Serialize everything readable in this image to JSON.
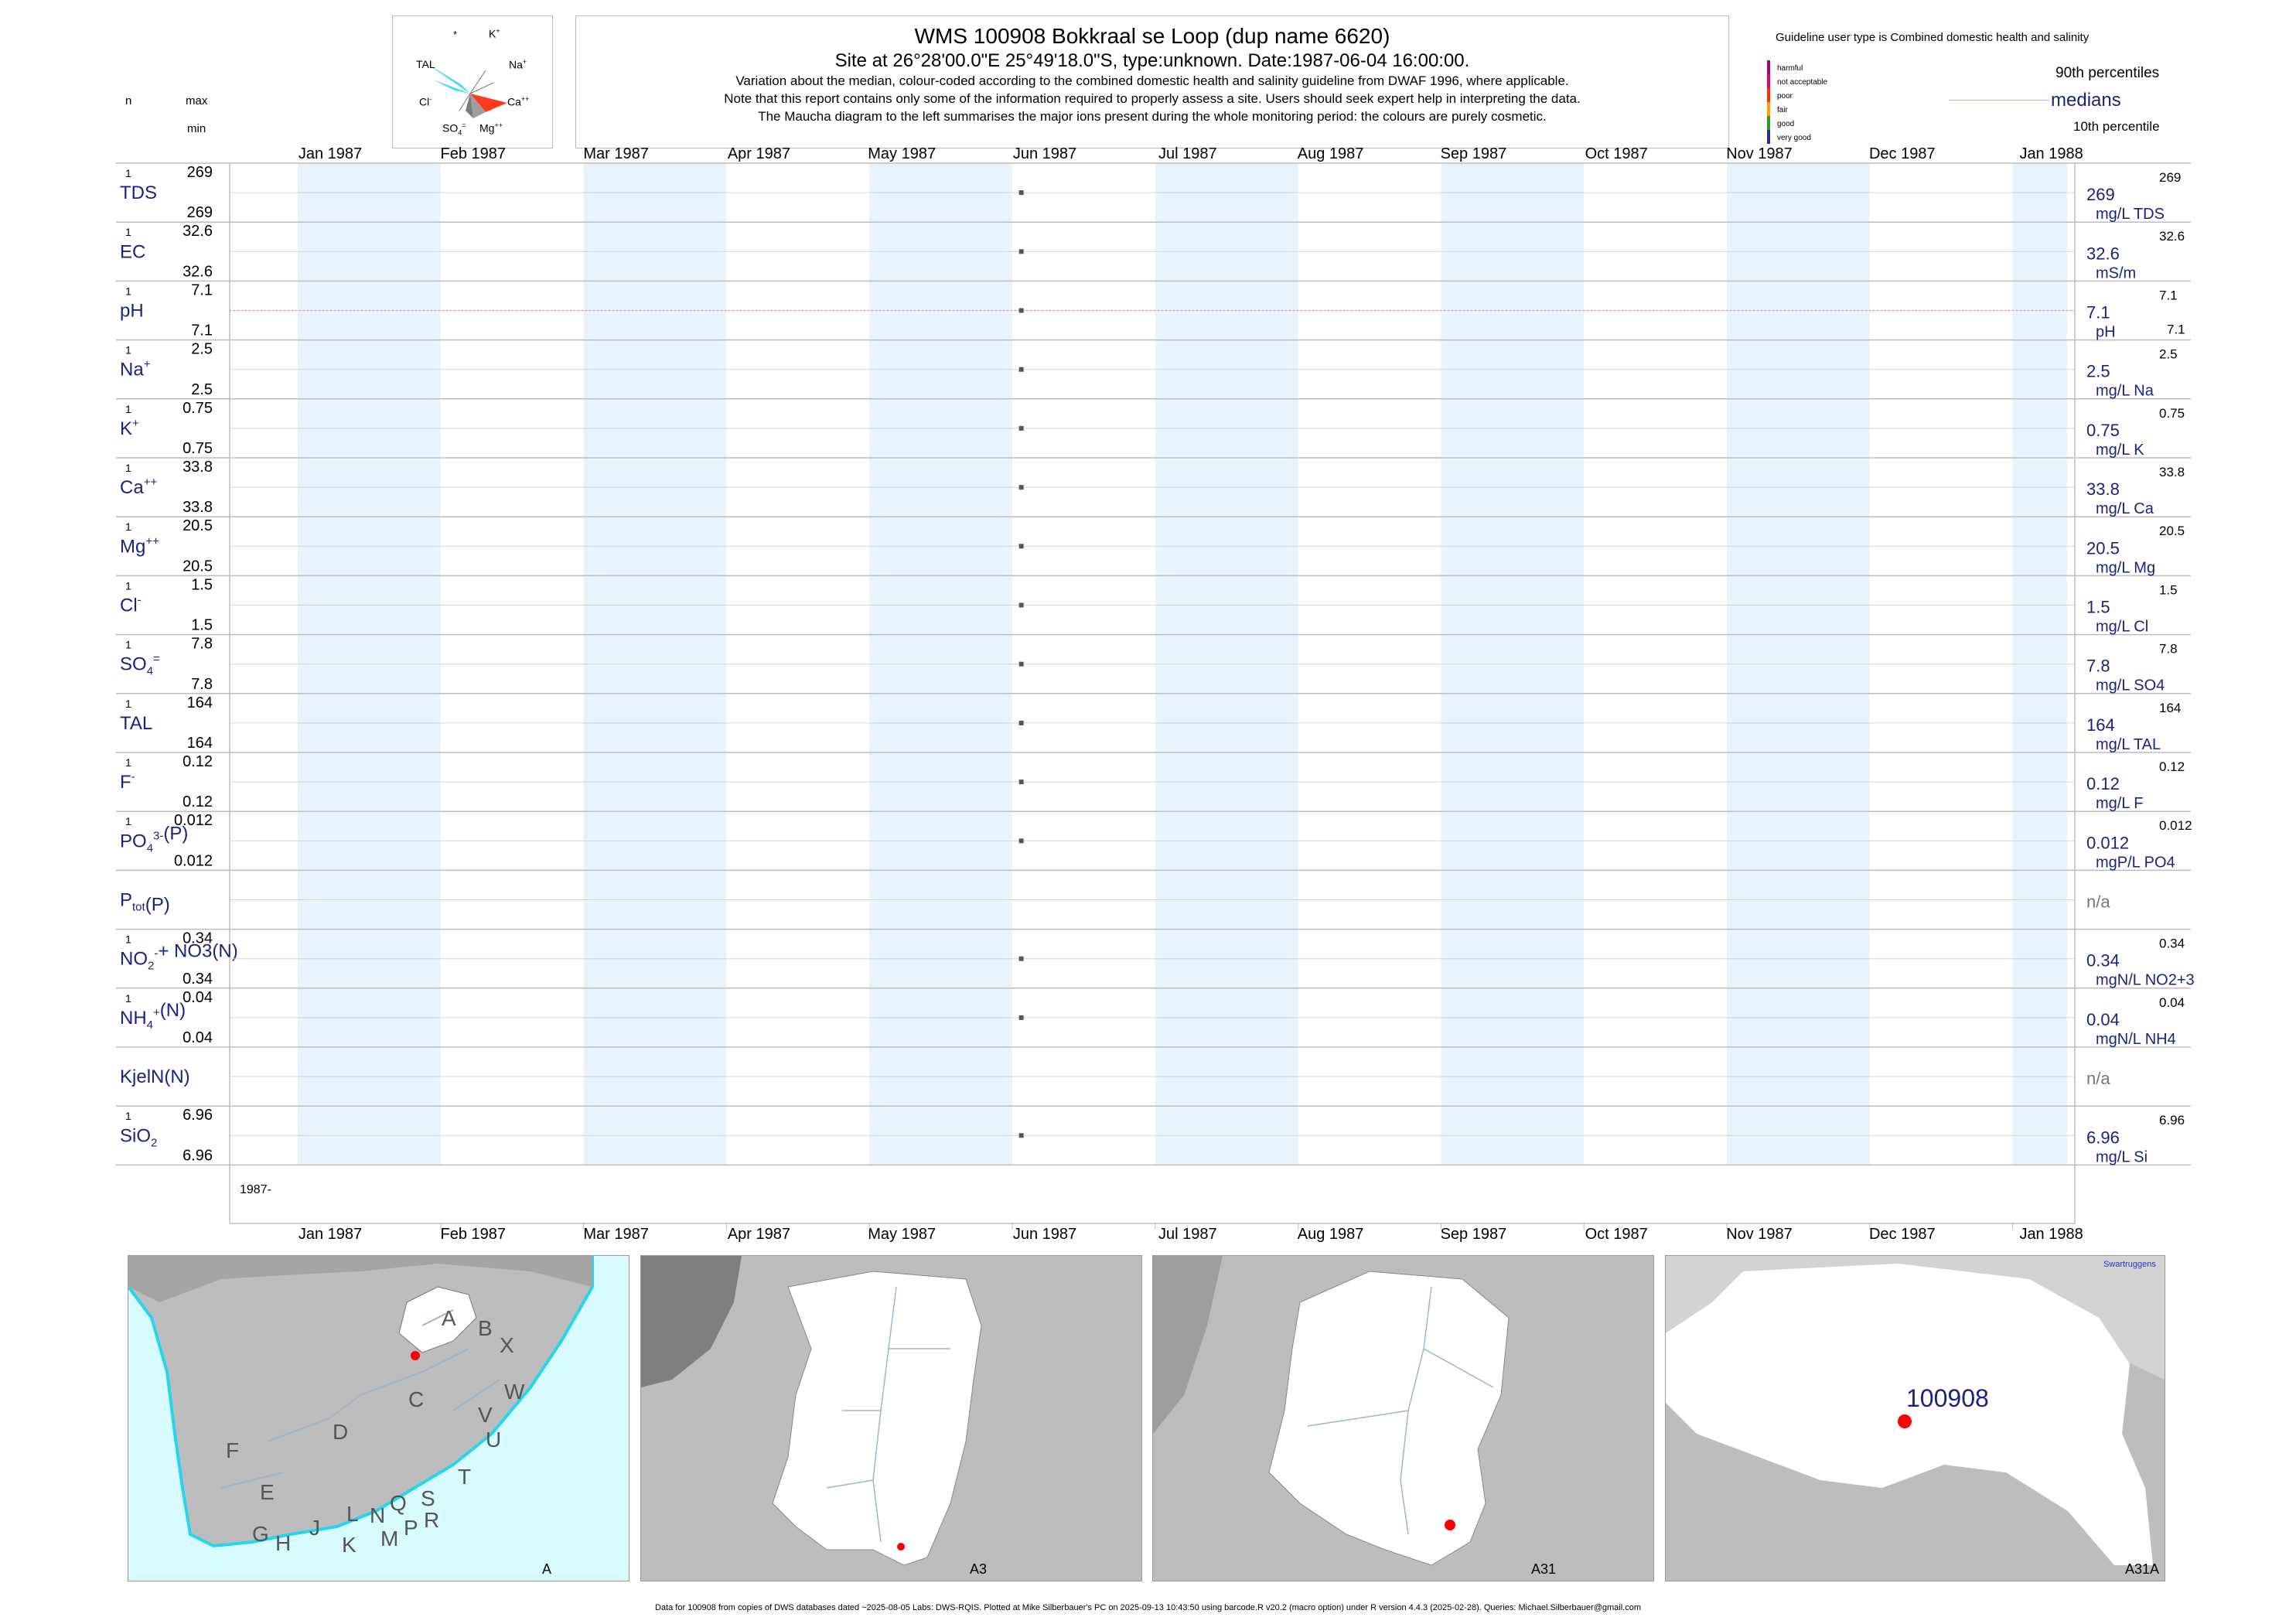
{
  "header": {
    "title": "WMS 100908  Bokkraal se Loop (dup name 6620)",
    "site_line": "Site at 26°28'00.0\"E 25°49'18.0\"S, type:unknown. Date:1987-06-04 16:00:00.",
    "note1": "Variation about the median,  colour-coded according to the combined domestic health and salinity guideline from DWAF 1996, where applicable.",
    "note2": "Note that this report contains only some of the information required to properly assess a site. Users should seek expert help in interpreting the data.",
    "note3": "The Maucha diagram to the left summarises the major ions present during the whole monitoring period: the colours are purely cosmetic."
  },
  "left_header": {
    "n": "n",
    "max": "max",
    "min": "min"
  },
  "maucha": {
    "labels": [
      "*",
      "K+",
      "TAL",
      "Na+",
      "Cl-",
      "Ca++",
      "SO4=",
      "Mg++"
    ],
    "colors": {
      "tal": "#33e0f0",
      "ca": "#ff3b1f",
      "grey": "#9e9e9e"
    }
  },
  "legend": {
    "guideline_title": "Guideline user type is Combined domestic health and salinity",
    "categories": [
      {
        "label": "harmful",
        "color": "#b0006b"
      },
      {
        "label": "not acceptable",
        "color": "#e0007a"
      },
      {
        "label": "poor",
        "color": "#ff2a00"
      },
      {
        "label": "fair",
        "color": "#ff9f00"
      },
      {
        "label": "good",
        "color": "#1fa01f"
      },
      {
        "label": "very good",
        "color": "#1f2fb0"
      }
    ],
    "p90": "90th percentiles",
    "medians": "medians",
    "p10": "10th percentile"
  },
  "chart_data": {
    "type": "scatter",
    "x_axis_months": [
      "Jan 1987",
      "Feb 1987",
      "Mar 1987",
      "Apr 1987",
      "May 1987",
      "Jun 1987",
      "Jul 1987",
      "Aug 1987",
      "Sep 1987",
      "Oct 1987",
      "Nov 1987",
      "Dec 1987",
      "Jan 1988"
    ],
    "year_label": "1987-",
    "sample_date": "1987-06-04",
    "colors": {
      "band": "#e8f3fd",
      "point": "#555555",
      "median_text": "#1a237e",
      "na_text": "#777777",
      "grid": "#bdbdbd"
    },
    "series": [
      {
        "name_main": "TDS",
        "sup": "",
        "sub": "",
        "tail": "",
        "n": "1",
        "max": "269",
        "min": "269",
        "value": 269,
        "median": "269",
        "unit": "mg/L TDS",
        "p90": "269",
        "p10": ""
      },
      {
        "name_main": "EC",
        "sup": "",
        "sub": "",
        "tail": "",
        "n": "1",
        "max": "32.6",
        "min": "32.6",
        "value": 32.6,
        "median": "32.6",
        "unit": "mS/m",
        "p90": "32.6",
        "p10": ""
      },
      {
        "name_main": "pH",
        "sup": "",
        "sub": "",
        "tail": "",
        "n": "1",
        "max": "7.1",
        "min": "7.1",
        "value": 7.1,
        "median": "7.1",
        "unit": "pH",
        "p90": "7.1",
        "p10": "7.1"
      },
      {
        "name_main": "Na",
        "sup": "+",
        "sub": "",
        "tail": "",
        "n": "1",
        "max": "2.5",
        "min": "2.5",
        "value": 2.5,
        "median": "2.5",
        "unit": "mg/L Na",
        "p90": "2.5",
        "p10": ""
      },
      {
        "name_main": "K",
        "sup": "+",
        "sub": "",
        "tail": "",
        "n": "1",
        "max": "0.75",
        "min": "0.75",
        "value": 0.75,
        "median": "0.75",
        "unit": "mg/L K",
        "p90": "0.75",
        "p10": ""
      },
      {
        "name_main": "Ca",
        "sup": "++",
        "sub": "",
        "tail": "",
        "n": "1",
        "max": "33.8",
        "min": "33.8",
        "value": 33.8,
        "median": "33.8",
        "unit": "mg/L Ca",
        "p90": "33.8",
        "p10": ""
      },
      {
        "name_main": "Mg",
        "sup": "++",
        "sub": "",
        "tail": "",
        "n": "1",
        "max": "20.5",
        "min": "20.5",
        "value": 20.5,
        "median": "20.5",
        "unit": "mg/L Mg",
        "p90": "20.5",
        "p10": ""
      },
      {
        "name_main": "Cl",
        "sup": "-",
        "sub": "",
        "tail": "",
        "n": "1",
        "max": "1.5",
        "min": "1.5",
        "value": 1.5,
        "median": "1.5",
        "unit": "mg/L Cl",
        "p90": "1.5",
        "p10": ""
      },
      {
        "name_main": "SO",
        "sup": "=",
        "sub": "4",
        "tail": "",
        "n": "1",
        "max": "7.8",
        "min": "7.8",
        "value": 7.8,
        "median": "7.8",
        "unit": "mg/L SO4",
        "p90": "7.8",
        "p10": ""
      },
      {
        "name_main": "TAL",
        "sup": "",
        "sub": "",
        "tail": "",
        "n": "1",
        "max": "164",
        "min": "164",
        "value": 164,
        "median": "164",
        "unit": "mg/L TAL",
        "p90": "164",
        "p10": ""
      },
      {
        "name_main": "F",
        "sup": "-",
        "sub": "",
        "tail": "",
        "n": "1",
        "max": "0.12",
        "min": "0.12",
        "value": 0.12,
        "median": "0.12",
        "unit": "mg/L F",
        "p90": "0.12",
        "p10": ""
      },
      {
        "name_main": "PO",
        "sup": "3-",
        "sub": "4",
        "tail": "(P)",
        "n": "1",
        "max": "0.012",
        "min": "0.012",
        "value": 0.012,
        "median": "0.012",
        "unit": "mgP/L PO4",
        "p90": "0.012",
        "p10": ""
      },
      {
        "name_main": "P",
        "sup": "",
        "sub": "tot",
        "tail": "(P)",
        "n": "",
        "max": "",
        "min": "",
        "value": null,
        "median": "n/a",
        "unit": "",
        "p90": "",
        "p10": ""
      },
      {
        "name_main": "NO",
        "sup": "-",
        "sub": "2",
        "tail": "+ NO3(N)",
        "n": "1",
        "max": "0.34",
        "min": "0.34",
        "value": 0.34,
        "median": "0.34",
        "unit": "mgN/L NO2+3",
        "p90": "0.34",
        "p10": ""
      },
      {
        "name_main": "NH",
        "sup": "+",
        "sub": "4",
        "tail": "(N)",
        "n": "1",
        "max": "0.04",
        "min": "0.04",
        "value": 0.04,
        "median": "0.04",
        "unit": "mgN/L NH4",
        "p90": "0.04",
        "p10": ""
      },
      {
        "name_main": "KjelN(N)",
        "sup": "",
        "sub": "",
        "tail": "",
        "n": "",
        "max": "",
        "min": "",
        "value": null,
        "median": "n/a",
        "unit": "",
        "p90": "",
        "p10": ""
      },
      {
        "name_main": "SiO",
        "sup": "",
        "sub": "2",
        "tail": "",
        "n": "1",
        "max": "6.96",
        "min": "6.96",
        "value": 6.96,
        "median": "6.96",
        "unit": "mg/L Si",
        "p90": "6.96",
        "p10": ""
      }
    ]
  },
  "maps": {
    "panel1": {
      "label": "A",
      "region_letters": [
        "A",
        "B",
        "X",
        "W",
        "C",
        "V",
        "U",
        "D",
        "T",
        "F",
        "E",
        "S",
        "R",
        "Q",
        "L",
        "N",
        "P",
        "J",
        "M",
        "G",
        "H",
        "K"
      ]
    },
    "panel2": {
      "label": "A3"
    },
    "panel3": {
      "label": "A31"
    },
    "panel4": {
      "label": "A31A",
      "site_label": "100908",
      "town_label": "Swartruggens"
    },
    "colors": {
      "sea": "#d8fbff",
      "land": "#bdbdbd",
      "dark": "#7f7f7f",
      "mid": "#9e9e9e",
      "catchment": "#ffffff",
      "river": "#9fb5c8",
      "site": "#ff0000",
      "coast": "#27d6ee"
    }
  },
  "footer": {
    "text": "Data for 100908 from copies of DWS databases dated ~2025-08-05 Labs: DWS-RQIS. Plotted at Mike Silberbauer's PC on 2025-09-13 10:43:50 using barcode.R v20.2 (macro option) under R version 4.4.3 (2025-02-28). Queries: Michael.Silberbauer@gmail.com"
  }
}
